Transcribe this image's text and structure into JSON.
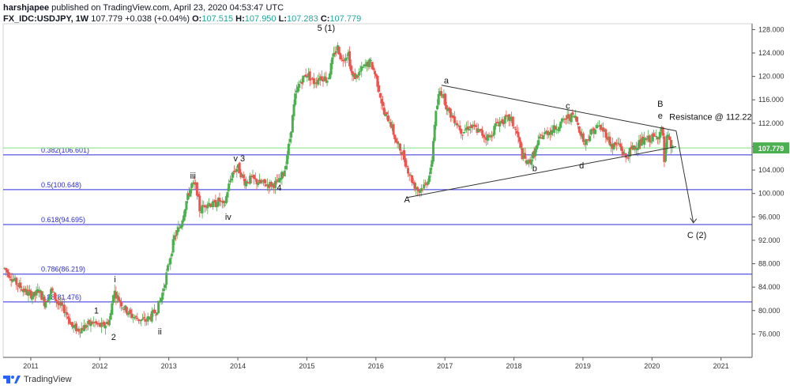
{
  "header": {
    "publisher": "harshjapee",
    "published_text": "published on TradingView.com, April 23, 2020 04:53:47 UTC",
    "symbol": "FX_IDC:USDJPY, 1W",
    "last": "107.779",
    "change": "+0.038 (+0.04%)",
    "o_label": "O:",
    "o_value": "107.515",
    "h_label": "H:",
    "h_value": "107.950",
    "l_label": "L:",
    "l_value": "107.283",
    "c_label": "C:",
    "c_value": "107.779"
  },
  "footer": {
    "brand": "TradingView"
  },
  "colors": {
    "up": "#26a69a",
    "up_bright": "#4caf50",
    "down": "#ef5350",
    "fib": "#2b2bdb",
    "price_line": "#7ee27e",
    "price_tag": "#4caf50"
  },
  "chart_data": {
    "type": "candlestick",
    "title": "",
    "xlabel": "",
    "ylabel": "",
    "ylim": [
      72,
      129
    ],
    "xlim": [
      2010.6,
      2021.45
    ],
    "y_ticks": [
      "76.000",
      "80.000",
      "84.000",
      "88.000",
      "92.000",
      "96.000",
      "100.000",
      "104.000",
      "108.000",
      "112.000",
      "116.000",
      "120.000",
      "124.000",
      "128.000"
    ],
    "x_ticks": [
      "2011",
      "2012",
      "2013",
      "2014",
      "2015",
      "2016",
      "2017",
      "2018",
      "2019",
      "2020",
      "2021"
    ],
    "last_price": 107.779,
    "series_path": [
      [
        2010.62,
        87.2
      ],
      [
        2010.8,
        84.5
      ],
      [
        2010.95,
        83.0
      ],
      [
        2011.05,
        82.5
      ],
      [
        2011.12,
        83.5
      ],
      [
        2011.2,
        81.3
      ],
      [
        2011.3,
        83.5
      ],
      [
        2011.4,
        81.0
      ],
      [
        2011.5,
        80.0
      ],
      [
        2011.6,
        77.2
      ],
      [
        2011.7,
        76.7
      ],
      [
        2011.8,
        77.4
      ],
      [
        2011.9,
        78.0
      ],
      [
        2011.97,
        77.5
      ],
      [
        2012.05,
        77.3
      ],
      [
        2012.15,
        78.5
      ],
      [
        2012.2,
        83.5
      ],
      [
        2012.27,
        82.0
      ],
      [
        2012.35,
        80.5
      ],
      [
        2012.45,
        79.2
      ],
      [
        2012.55,
        78.6
      ],
      [
        2012.65,
        78.2
      ],
      [
        2012.72,
        78.8
      ],
      [
        2012.82,
        80.0
      ],
      [
        2012.9,
        82.5
      ],
      [
        2013.0,
        88.0
      ],
      [
        2013.08,
        92.5
      ],
      [
        2013.17,
        94.5
      ],
      [
        2013.25,
        98.5
      ],
      [
        2013.33,
        101.5
      ],
      [
        2013.4,
        101.0
      ],
      [
        2013.45,
        97.0
      ],
      [
        2013.55,
        98.5
      ],
      [
        2013.65,
        98.0
      ],
      [
        2013.73,
        98.8
      ],
      [
        2013.8,
        97.6
      ],
      [
        2013.85,
        100.5
      ],
      [
        2013.92,
        103.5
      ],
      [
        2014.0,
        104.5
      ],
      [
        2014.1,
        102.0
      ],
      [
        2014.2,
        102.5
      ],
      [
        2014.3,
        101.8
      ],
      [
        2014.4,
        101.6
      ],
      [
        2014.5,
        101.5
      ],
      [
        2014.6,
        102.0
      ],
      [
        2014.68,
        104.2
      ],
      [
        2014.75,
        109.0
      ],
      [
        2014.83,
        116.5
      ],
      [
        2014.9,
        119.0
      ],
      [
        2015.0,
        120.5
      ],
      [
        2015.1,
        119.0
      ],
      [
        2015.2,
        120.0
      ],
      [
        2015.3,
        119.5
      ],
      [
        2015.4,
        124.0
      ],
      [
        2015.45,
        125.0
      ],
      [
        2015.5,
        122.8
      ],
      [
        2015.6,
        124.0
      ],
      [
        2015.65,
        120.0
      ],
      [
        2015.72,
        120.0
      ],
      [
        2015.82,
        121.5
      ],
      [
        2015.92,
        122.5
      ],
      [
        2016.0,
        120.0
      ],
      [
        2016.05,
        117.5
      ],
      [
        2016.12,
        113.5
      ],
      [
        2016.2,
        112.5
      ],
      [
        2016.3,
        108.5
      ],
      [
        2016.38,
        107.0
      ],
      [
        2016.45,
        104.5
      ],
      [
        2016.55,
        101.5
      ],
      [
        2016.62,
        100.5
      ],
      [
        2016.72,
        101.5
      ],
      [
        2016.8,
        104.0
      ],
      [
        2016.85,
        112.0
      ],
      [
        2016.92,
        117.5
      ],
      [
        2016.97,
        117.0
      ],
      [
        2017.05,
        114.0
      ],
      [
        2017.15,
        112.5
      ],
      [
        2017.25,
        110.5
      ],
      [
        2017.35,
        111.5
      ],
      [
        2017.45,
        111.0
      ],
      [
        2017.55,
        110.0
      ],
      [
        2017.65,
        109.5
      ],
      [
        2017.75,
        112.0
      ],
      [
        2017.85,
        112.5
      ],
      [
        2017.95,
        112.8
      ],
      [
        2018.05,
        110.0
      ],
      [
        2018.12,
        106.5
      ],
      [
        2018.2,
        105.0
      ],
      [
        2018.3,
        107.0
      ],
      [
        2018.38,
        109.5
      ],
      [
        2018.48,
        110.5
      ],
      [
        2018.58,
        111.0
      ],
      [
        2018.68,
        112.0
      ],
      [
        2018.78,
        113.0
      ],
      [
        2018.88,
        113.2
      ],
      [
        2018.95,
        111.0
      ],
      [
        2019.02,
        108.5
      ],
      [
        2019.12,
        110.5
      ],
      [
        2019.22,
        111.5
      ],
      [
        2019.32,
        110.5
      ],
      [
        2019.42,
        108.0
      ],
      [
        2019.52,
        108.5
      ],
      [
        2019.62,
        106.0
      ],
      [
        2019.7,
        107.5
      ],
      [
        2019.8,
        108.5
      ],
      [
        2019.9,
        109.0
      ],
      [
        2020.0,
        109.5
      ],
      [
        2020.05,
        109.5
      ],
      [
        2020.12,
        110.5
      ],
      [
        2020.15,
        111.0
      ],
      [
        2020.18,
        105.0
      ],
      [
        2020.22,
        110.0
      ],
      [
        2020.27,
        108.0
      ],
      [
        2020.3,
        107.779
      ]
    ],
    "fib_levels": [
      {
        "label": "0.382(106.601)",
        "value": 106.601
      },
      {
        "label": "0.5(100.648)",
        "value": 100.648
      },
      {
        "label": "0.618(94.695)",
        "value": 94.695
      },
      {
        "label": "0.786(86.219)",
        "value": 86.219
      },
      {
        "label": "0.88(81.476)",
        "value": 81.476
      }
    ],
    "wave_labels": [
      {
        "text": "1",
        "x": 2011.95,
        "y": 79.5
      },
      {
        "text": "2",
        "x": 2012.2,
        "y": 75.0
      },
      {
        "text": "i",
        "x": 2012.22,
        "y": 84.8
      },
      {
        "text": "ii",
        "x": 2012.87,
        "y": 75.9
      },
      {
        "text": "iii",
        "x": 2013.35,
        "y": 102.5
      },
      {
        "text": "iv",
        "x": 2013.86,
        "y": 95.5
      },
      {
        "text": "v 3",
        "x": 2014.02,
        "y": 105.5
      },
      {
        "text": "4",
        "x": 2014.6,
        "y": 100.5
      },
      {
        "text": "5 (1)",
        "x": 2015.28,
        "y": 127.8
      },
      {
        "text": "a",
        "x": 2017.02,
        "y": 118.8
      },
      {
        "text": "A",
        "x": 2016.45,
        "y": 98.5
      },
      {
        "text": "b",
        "x": 2018.3,
        "y": 103.8
      },
      {
        "text": "c",
        "x": 2018.78,
        "y": 114.5
      },
      {
        "text": "d",
        "x": 2018.98,
        "y": 104.3
      },
      {
        "text": "B",
        "x": 2020.12,
        "y": 114.8
      },
      {
        "text": "e",
        "x": 2020.12,
        "y": 112.8
      },
      {
        "text": "C (2)",
        "x": 2020.65,
        "y": 92.4
      }
    ],
    "annotations": [
      {
        "text": "Resistance @ 112.22",
        "x": 2020.25,
        "y": 112.6
      }
    ],
    "trend_lines": [
      {
        "from": [
          2016.95,
          118.5
        ],
        "to": [
          2020.35,
          110.7
        ]
      },
      {
        "from": [
          2016.45,
          99.3
        ],
        "to": [
          2020.35,
          108.0
        ]
      },
      {
        "from": [
          2020.35,
          110.7
        ],
        "to": [
          2020.6,
          95.0
        ]
      }
    ]
  }
}
